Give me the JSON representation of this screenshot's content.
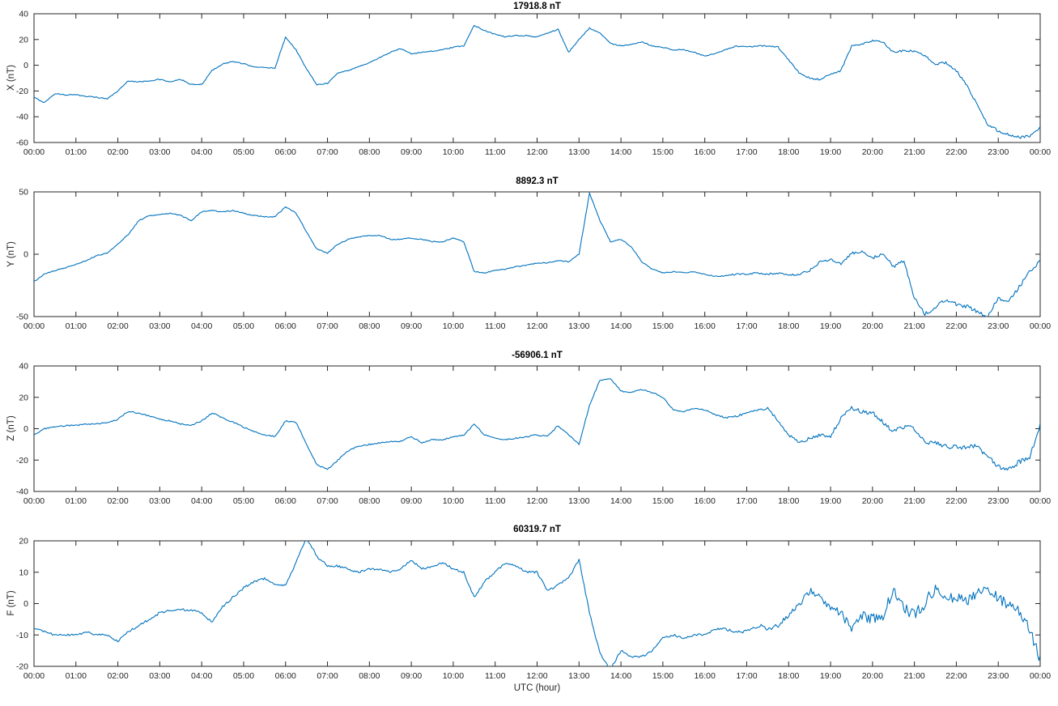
{
  "figure": {
    "background": "#ffffff",
    "line_color": "#0072BD",
    "axis_color": "#262626",
    "xlabel": "UTC (hour)",
    "xtick_labels": [
      "00:00",
      "01:00",
      "02:00",
      "03:00",
      "04:00",
      "05:00",
      "06:00",
      "07:00",
      "08:00",
      "09:00",
      "10:00",
      "11:00",
      "12:00",
      "13:00",
      "14:00",
      "15:00",
      "16:00",
      "17:00",
      "18:00",
      "19:00",
      "20:00",
      "21:00",
      "22:00",
      "23:00",
      "00:00"
    ]
  },
  "chart_data": [
    {
      "type": "line",
      "title": "17918.8 nT",
      "ylabel": "X (nT)",
      "xlabel": "",
      "xlim": [
        0,
        24
      ],
      "ylim": [
        -60,
        40
      ],
      "yticks": [
        -60,
        -40,
        -20,
        0,
        20,
        40
      ],
      "x_hours_start": 0,
      "x_hours_step": 0.25,
      "grid": false,
      "legend": null,
      "noise_amp": [
        0.4,
        1.0
      ],
      "values": [
        -25,
        -29,
        -22,
        -23,
        -23,
        -24,
        -25,
        -26,
        -20,
        -12,
        -13,
        -12,
        -11,
        -13,
        -11,
        -15,
        -15,
        -4,
        1,
        3,
        1,
        -1,
        -2,
        -2,
        22,
        12,
        -3,
        -15,
        -14,
        -6,
        -4,
        -1,
        2,
        6,
        10,
        13,
        9,
        10,
        11,
        12,
        14,
        15,
        31,
        27,
        24,
        22,
        23,
        23,
        22,
        25,
        28,
        10,
        20,
        29,
        25,
        17,
        15,
        16,
        18,
        15,
        14,
        12,
        12,
        10,
        7,
        9,
        12,
        15,
        14,
        15,
        15,
        14,
        4,
        -6,
        -10,
        -11,
        -7,
        -4,
        15,
        16,
        19,
        18,
        10,
        11,
        11,
        7,
        1,
        2,
        -4,
        -16,
        -31,
        -46,
        -51,
        -54,
        -56,
        -55,
        -48
      ]
    },
    {
      "type": "line",
      "title": "8892.3 nT",
      "ylabel": "Y (nT)",
      "xlabel": "",
      "xlim": [
        0,
        24
      ],
      "ylim": [
        -50,
        50
      ],
      "yticks": [
        -50,
        0,
        50
      ],
      "x_hours_start": 0,
      "x_hours_step": 0.25,
      "grid": false,
      "legend": null,
      "noise_amp": [
        0.4,
        1.5
      ],
      "values": [
        -22,
        -16,
        -13,
        -11,
        -8,
        -5,
        -1,
        1,
        8,
        16,
        27,
        31,
        32,
        33,
        31,
        27,
        34,
        35,
        34,
        35,
        33,
        31,
        30,
        30,
        38,
        33,
        18,
        4,
        1,
        8,
        12,
        14,
        15,
        15,
        12,
        12,
        13,
        12,
        10,
        10,
        13,
        10,
        -14,
        -15,
        -13,
        -12,
        -10,
        -9,
        -7,
        -7,
        -5,
        -6,
        0,
        49,
        27,
        10,
        12,
        6,
        -6,
        -12,
        -15,
        -14,
        -15,
        -14,
        -16,
        -18,
        -17,
        -16,
        -16,
        -15,
        -16,
        -15,
        -17,
        -16,
        -13,
        -6,
        -4,
        -8,
        1,
        2,
        -3,
        0,
        -10,
        -5,
        -35,
        -48,
        -43,
        -36,
        -40,
        -42,
        -46,
        -50,
        -35,
        -38,
        -26,
        -14,
        -5
      ]
    },
    {
      "type": "line",
      "title": "-56906.1 nT",
      "ylabel": "Z (nT)",
      "xlabel": "",
      "xlim": [
        0,
        24
      ],
      "ylim": [
        -40,
        40
      ],
      "yticks": [
        -40,
        -20,
        0,
        20,
        40
      ],
      "x_hours_start": 0,
      "x_hours_step": 0.25,
      "grid": false,
      "legend": null,
      "noise_amp": [
        0.4,
        1.6
      ],
      "values": [
        -4,
        0,
        1,
        2,
        2,
        3,
        3,
        4,
        6,
        11,
        10,
        8,
        6,
        5,
        3,
        2,
        5,
        10,
        7,
        4,
        1,
        -2,
        -4,
        -5,
        5,
        4,
        -10,
        -23,
        -26,
        -20,
        -14,
        -11,
        -10,
        -9,
        -8,
        -8,
        -5,
        -9,
        -7,
        -7,
        -5,
        -4,
        3,
        -4,
        -6,
        -7,
        -6,
        -5,
        -4,
        -5,
        2,
        -4,
        -10,
        15,
        31,
        32,
        24,
        23,
        25,
        23,
        20,
        12,
        11,
        13,
        12,
        9,
        7,
        8,
        10,
        12,
        13,
        5,
        -4,
        -9,
        -6,
        -4,
        -5,
        7,
        13,
        11,
        10,
        4,
        -2,
        1,
        0,
        -8,
        -9,
        -11,
        -12,
        -12,
        -11,
        -18,
        -24,
        -26,
        -21,
        -18,
        3
      ]
    },
    {
      "type": "line",
      "title": "60319.7 nT",
      "ylabel": "F (nT)",
      "xlabel": "UTC (hour)",
      "xlim": [
        0,
        24
      ],
      "ylim": [
        -20,
        20
      ],
      "yticks": [
        -20,
        -10,
        0,
        10,
        20
      ],
      "x_hours_start": 0,
      "x_hours_step": 0.25,
      "grid": false,
      "legend": null,
      "noise_amp": [
        0.35,
        1.9
      ],
      "values": [
        -8,
        -9,
        -10,
        -10,
        -10,
        -9,
        -10,
        -10,
        -12,
        -9,
        -7,
        -5,
        -3,
        -2,
        -2,
        -2,
        -3,
        -6,
        -1,
        2,
        5,
        7,
        8,
        6,
        6,
        13,
        21,
        15,
        12,
        12,
        11,
        10,
        11,
        11,
        10,
        11,
        14,
        11,
        12,
        13,
        11,
        10,
        2,
        7,
        10,
        13,
        12,
        10,
        10,
        4,
        6,
        8,
        14,
        -3,
        -16,
        -21,
        -15,
        -17,
        -17,
        -15,
        -11,
        -10,
        -11,
        -10,
        -10,
        -8,
        -8,
        -9,
        -9,
        -7,
        -8,
        -7,
        -4,
        0,
        4,
        2,
        -1,
        -3,
        -8,
        -4,
        -5,
        -4,
        5,
        -1,
        -4,
        0,
        5,
        2,
        2,
        1,
        4,
        4,
        2,
        -1,
        -2,
        -8,
        -18
      ]
    }
  ]
}
